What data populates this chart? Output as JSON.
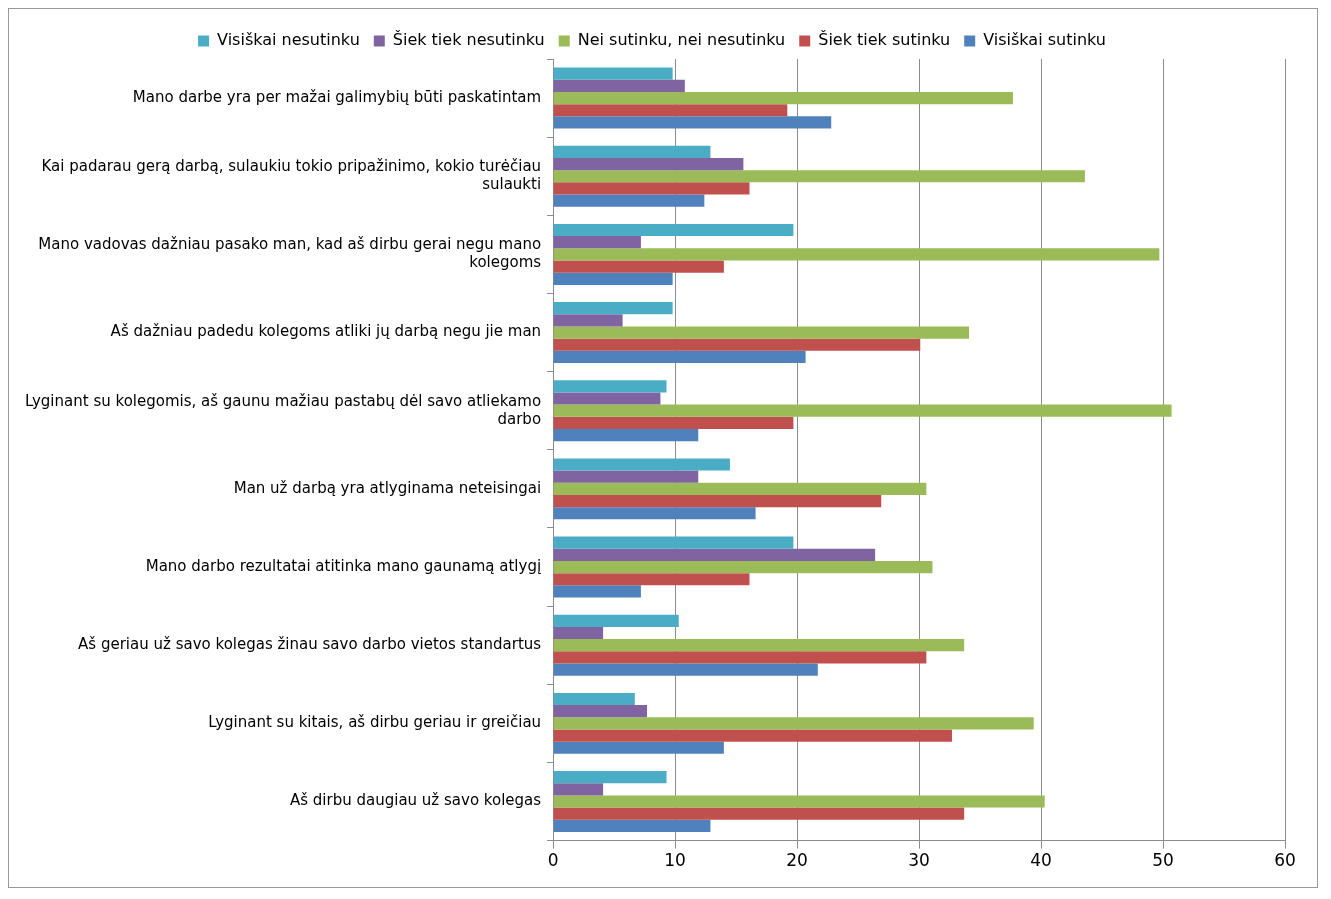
{
  "chart_data": {
    "type": "bar",
    "orientation": "horizontal",
    "categories": [
      "Mano darbe yra per mažai galimybių būti paskatintam",
      "Kai padarau gerą darbą, sulaukiu tokio pripažinimo, kokio turėčiau sulaukti",
      "Mano vadovas dažniau pasako man, kad aš dirbu gerai negu mano kolegoms",
      "Aš dažniau padedu kolegoms atliki jų darbą negu jie man",
      "Lyginant su kolegomis, aš gaunu mažiau pastabų dėl savo atliekamo darbo",
      "Man už darbą yra atlyginama neteisingai",
      "Mano darbo rezultatai atitinka mano gaunamą atlygį",
      "Aš geriau už savo kolegas žinau savo darbo vietos standartus",
      "Lyginant su kitais, aš dirbu geriau ir greičiau",
      "Aš dirbu daugiau už savo kolegas"
    ],
    "series": [
      {
        "name": "Visiškai nesutinku",
        "color": "#4bacc6",
        "values": [
          9.8,
          12.9,
          19.7,
          9.8,
          9.3,
          14.5,
          19.7,
          10.3,
          6.7,
          9.3
        ]
      },
      {
        "name": "Šiek tiek nesutinku",
        "color": "#8064a2",
        "values": [
          10.8,
          15.6,
          7.2,
          5.7,
          8.8,
          11.9,
          26.4,
          4.1,
          7.7,
          4.1
        ]
      },
      {
        "name": "Nei sutinku, nei nesutinku",
        "color": "#9bbb59",
        "values": [
          37.7,
          43.6,
          49.7,
          34.1,
          50.7,
          30.6,
          31.1,
          33.7,
          39.4,
          40.3
        ]
      },
      {
        "name": "Šiek tiek sutinku",
        "color": "#c0504d",
        "values": [
          19.2,
          16.1,
          14.0,
          30.1,
          19.7,
          26.9,
          16.1,
          30.6,
          32.7,
          33.7
        ]
      },
      {
        "name": "Visiškai sutinku",
        "color": "#4f81bd",
        "values": [
          22.8,
          12.4,
          9.8,
          20.7,
          11.9,
          16.6,
          7.2,
          21.7,
          14.0,
          12.9
        ]
      }
    ],
    "xlim": [
      0,
      60
    ],
    "xticks": [
      0,
      10,
      20,
      30,
      40,
      50,
      60
    ],
    "grid": "x",
    "legend": "top"
  }
}
